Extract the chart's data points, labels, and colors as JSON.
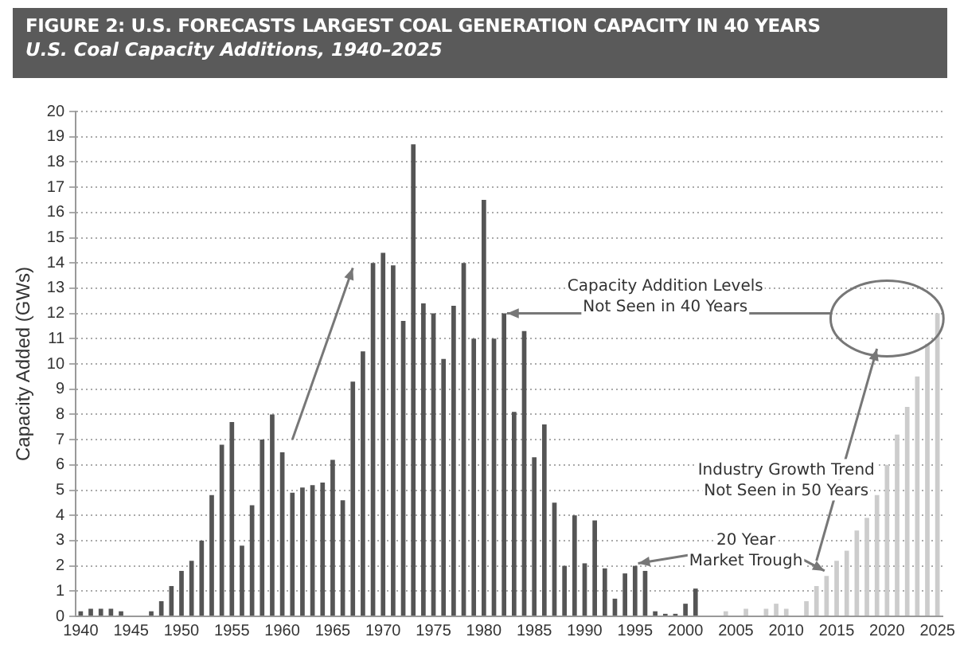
{
  "chart_data": {
    "type": "bar",
    "title": "FIGURE 2: U.S. FORECASTS LARGEST COAL GENERATION CAPACITY IN 40 YEARS",
    "subtitle": "U.S. Coal Capacity Additions, 1940–2025",
    "ylabel": "Capacity Added (GWs)",
    "categories": [
      "1940",
      null,
      null,
      null,
      null,
      "1945",
      null,
      null,
      null,
      null,
      "1950",
      null,
      null,
      null,
      null,
      "1955",
      null,
      null,
      null,
      null,
      "1960",
      null,
      null,
      null,
      null,
      "1965",
      null,
      null,
      null,
      null,
      "1970",
      null,
      null,
      null,
      null,
      "1975",
      null,
      null,
      null,
      null,
      "1980",
      null,
      null,
      null,
      null,
      "1985",
      null,
      null,
      null,
      null,
      "1990",
      null,
      null,
      null,
      null,
      "1995",
      null,
      null,
      null,
      null,
      "2000",
      null,
      null,
      null,
      null,
      "2005",
      null,
      null,
      null,
      null,
      "2010",
      null,
      null,
      null,
      null,
      "2015",
      null,
      null,
      null,
      null,
      "2020",
      null,
      null,
      null,
      null,
      "2025"
    ],
    "values": [
      0.2,
      0.3,
      0.3,
      0.3,
      0.2,
      0,
      0,
      0.2,
      0.6,
      1.2,
      1.8,
      2.2,
      3.0,
      4.8,
      6.8,
      7.7,
      2.8,
      4.4,
      7.0,
      8.0,
      6.5,
      4.9,
      5.1,
      5.2,
      5.3,
      6.2,
      4.6,
      9.3,
      10.5,
      14.0,
      14.4,
      13.9,
      11.7,
      18.7,
      12.4,
      12.0,
      10.2,
      12.3,
      14.0,
      11.0,
      16.5,
      11.0,
      12.0,
      8.1,
      11.3,
      6.3,
      7.6,
      4.5,
      2.0,
      4.0,
      2.1,
      3.8,
      1.9,
      0.7,
      1.7,
      2.0,
      1.8,
      0.2,
      0.1,
      0.1,
      0.5,
      1.1,
      0,
      0,
      0.2,
      0,
      0.3,
      0,
      0.3,
      0.5,
      0.3,
      0,
      0.6,
      1.2,
      1.6,
      2.2,
      2.6,
      3.4,
      3.9,
      4.8,
      6.0,
      7.2,
      8.3,
      9.5,
      10.8,
      12.0
    ],
    "colors": [
      "#555555",
      "#555555",
      "#555555",
      "#555555",
      "#555555",
      "#555555",
      "#555555",
      "#555555",
      "#555555",
      "#555555",
      "#555555",
      "#555555",
      "#555555",
      "#555555",
      "#555555",
      "#555555",
      "#555555",
      "#555555",
      "#555555",
      "#555555",
      "#555555",
      "#555555",
      "#555555",
      "#555555",
      "#555555",
      "#555555",
      "#555555",
      "#555555",
      "#555555",
      "#555555",
      "#555555",
      "#555555",
      "#555555",
      "#555555",
      "#555555",
      "#555555",
      "#555555",
      "#555555",
      "#555555",
      "#555555",
      "#555555",
      "#555555",
      "#555555",
      "#555555",
      "#555555",
      "#555555",
      "#555555",
      "#555555",
      "#555555",
      "#555555",
      "#555555",
      "#555555",
      "#555555",
      "#555555",
      "#555555",
      "#555555",
      "#555555",
      "#555555",
      "#555555",
      "#555555",
      "#555555",
      "#555555",
      "#cccccc",
      "#cccccc",
      "#cccccc",
      "#cccccc",
      "#cccccc",
      "#cccccc",
      "#cccccc",
      "#cccccc",
      "#cccccc",
      "#cccccc",
      "#cccccc",
      "#cccccc",
      "#cccccc",
      "#cccccc",
      "#cccccc",
      "#cccccc",
      "#cccccc",
      "#cccccc",
      "#cccccc",
      "#cccccc",
      "#cccccc",
      "#cccccc",
      "#cccccc",
      "#cccccc"
    ],
    "ylim": [
      0,
      20
    ],
    "yticks": [
      0,
      1,
      2,
      3,
      4,
      5,
      6,
      7,
      8,
      9,
      10,
      11,
      12,
      13,
      14,
      15,
      16,
      17,
      18,
      19,
      20
    ],
    "grid": "y",
    "annotations": [
      "Capacity Addition Levels\nNot Seen in 40 Years",
      "Industry Growth Trend\nNot Seen in 50 Years",
      {
        "text": "20 Year\nMarket Trough",
        "x": "1995",
        "y": 2.0
      }
    ]
  }
}
